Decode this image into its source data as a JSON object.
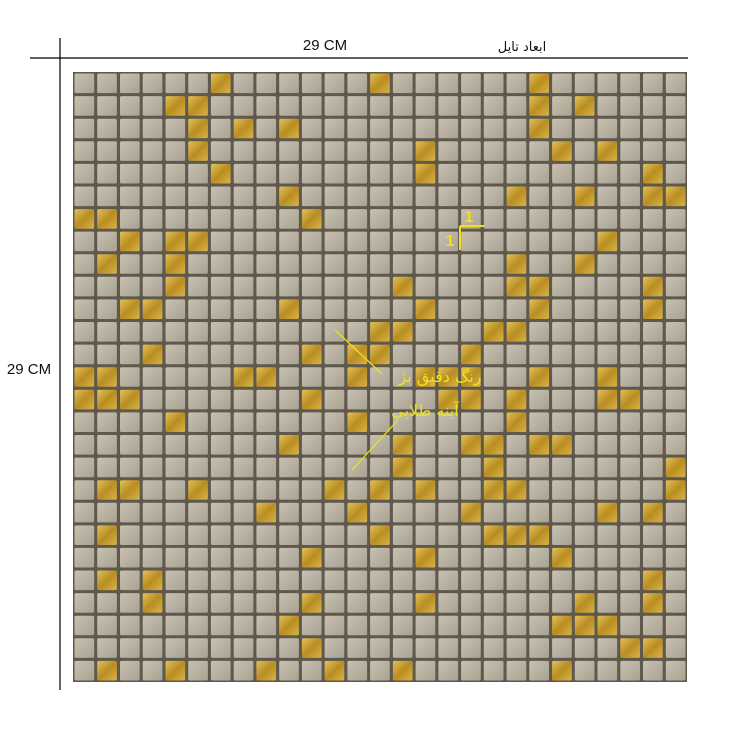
{
  "dimensions": {
    "width_label": "29 CM",
    "title": "ابعاد تایل",
    "height_label": "29 CM"
  },
  "tile_callout": {
    "width": "1",
    "height": "1"
  },
  "annotation": {
    "line1": "رنگ دقیق بژ",
    "line2": "آینه طلایی"
  }
}
